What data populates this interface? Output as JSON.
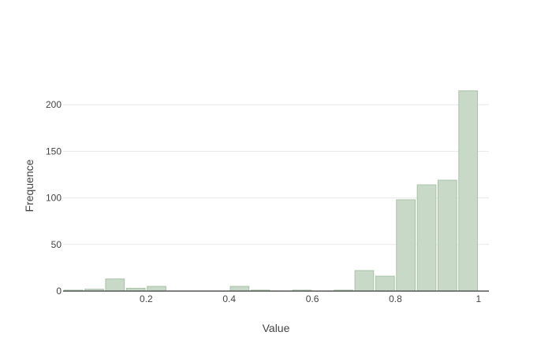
{
  "chart_data": {
    "type": "bar",
    "title": "",
    "xlabel": "Value",
    "ylabel": "Frequence",
    "xlim": [
      0.0,
      1.025
    ],
    "ylim": [
      0,
      228
    ],
    "xticks": [
      {
        "value": 0.2,
        "label": "0.2"
      },
      {
        "value": 0.4,
        "label": "0.4"
      },
      {
        "value": 0.6,
        "label": "0.6"
      },
      {
        "value": 0.8,
        "label": "0.8"
      },
      {
        "value": 1.0,
        "label": "1"
      }
    ],
    "yticks": [
      {
        "value": 0,
        "label": "0"
      },
      {
        "value": 50,
        "label": "50"
      },
      {
        "value": 100,
        "label": "100"
      },
      {
        "value": 150,
        "label": "150"
      },
      {
        "value": 200,
        "label": "200"
      }
    ],
    "bin_width": 0.05,
    "bins": [
      {
        "center": 0.025,
        "value": 1
      },
      {
        "center": 0.075,
        "value": 2
      },
      {
        "center": 0.125,
        "value": 13
      },
      {
        "center": 0.175,
        "value": 3
      },
      {
        "center": 0.225,
        "value": 5
      },
      {
        "center": 0.425,
        "value": 5
      },
      {
        "center": 0.475,
        "value": 1
      },
      {
        "center": 0.575,
        "value": 1
      },
      {
        "center": 0.675,
        "value": 1
      },
      {
        "center": 0.725,
        "value": 22
      },
      {
        "center": 0.775,
        "value": 16
      },
      {
        "center": 0.825,
        "value": 98
      },
      {
        "center": 0.875,
        "value": 114
      },
      {
        "center": 0.925,
        "value": 119
      },
      {
        "center": 0.975,
        "value": 215
      }
    ],
    "grid": true,
    "legend": "none",
    "colors": {
      "bar_fill": "#c8d9c8",
      "bar_stroke": "#a9c2a9",
      "grid": "#e8e8e8",
      "axis_line": "#555555",
      "text": "#444444"
    }
  }
}
